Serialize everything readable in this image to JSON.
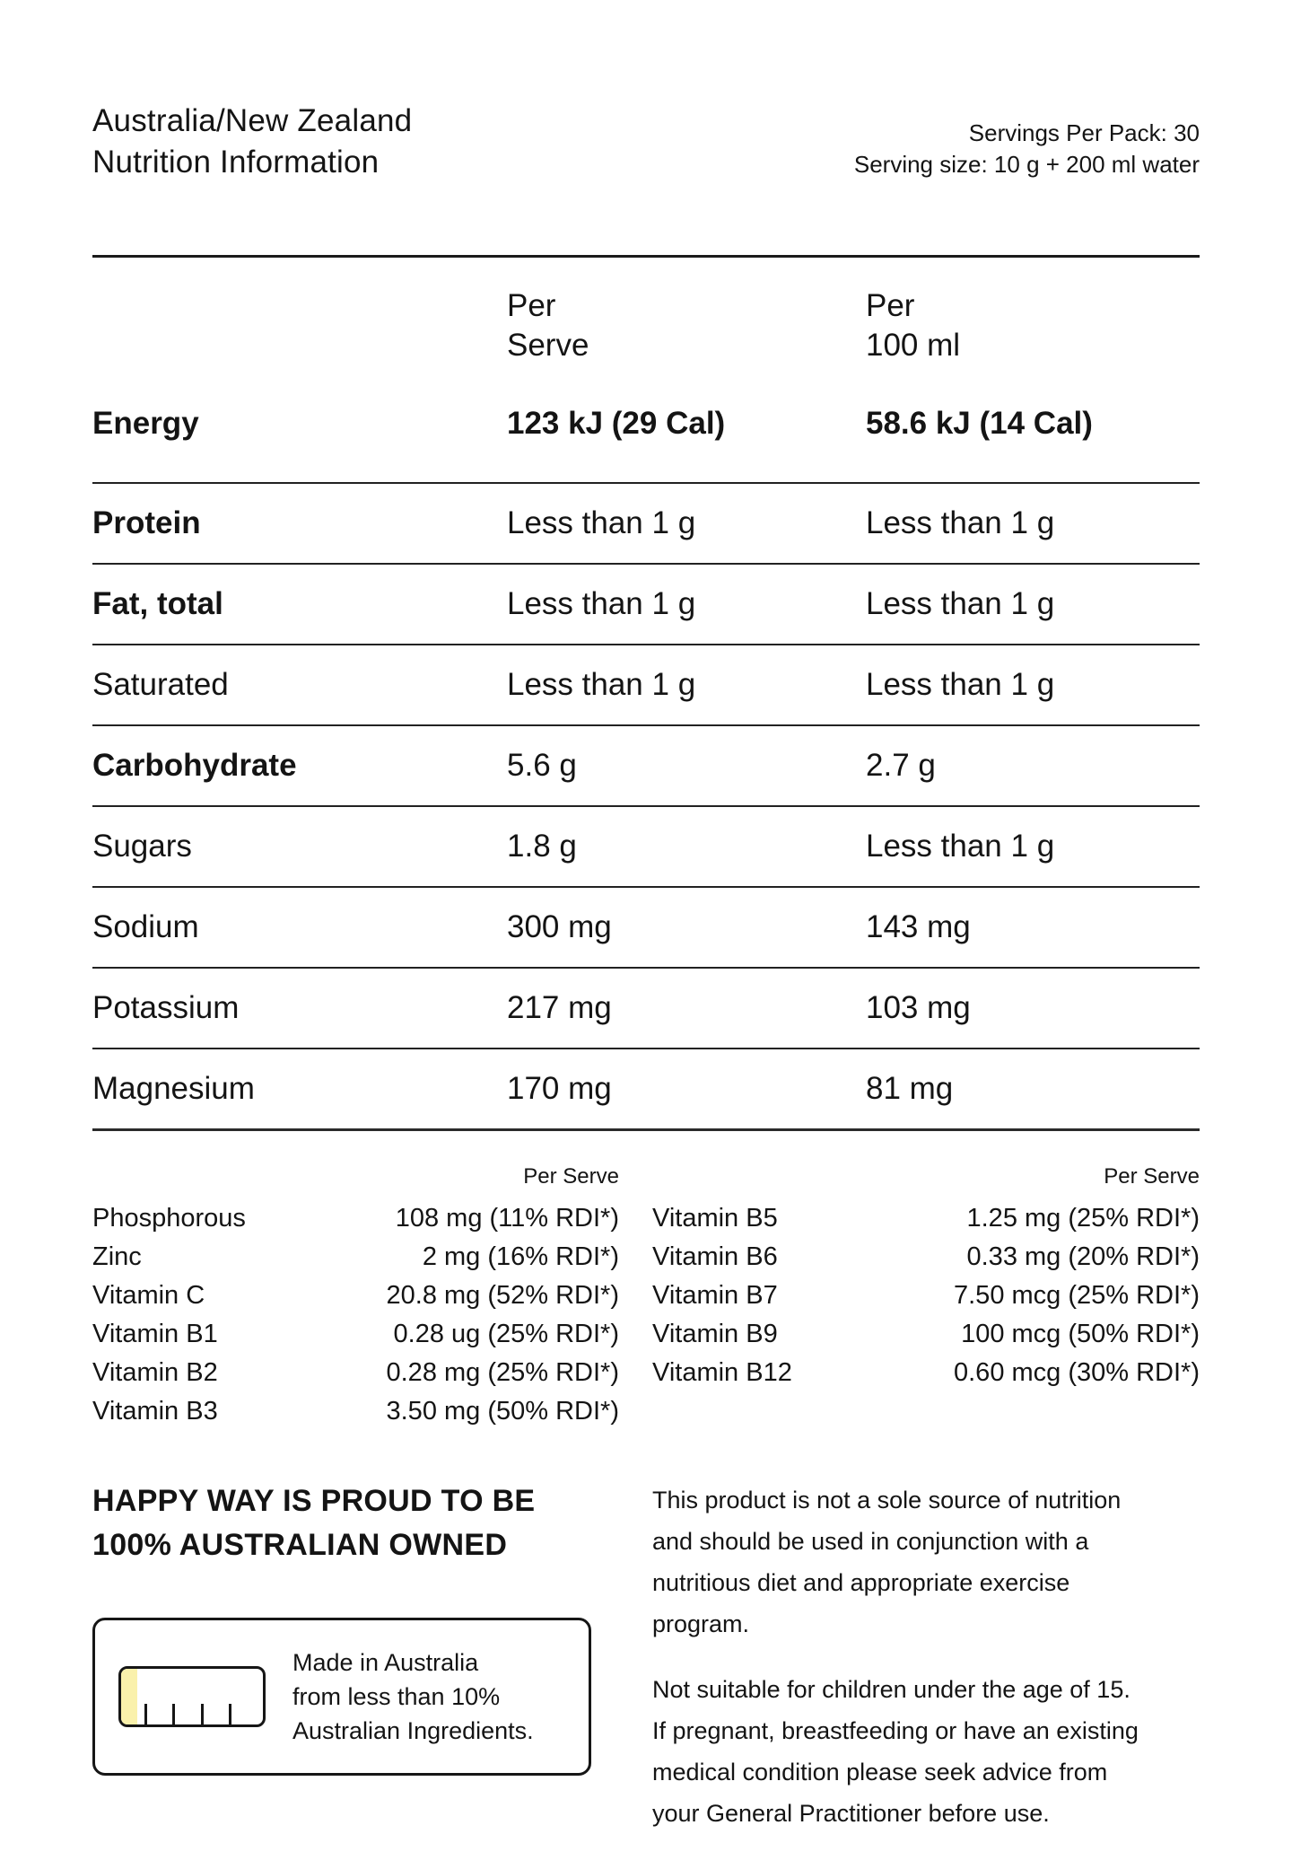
{
  "header": {
    "title_lines": [
      "Australia/New Zealand",
      "Nutrition Information"
    ],
    "servings_per_pack": "Servings Per Pack: 30",
    "serving_size": "Serving size: 10 g + 200 ml water"
  },
  "table": {
    "columns": {
      "per_serve": [
        "Per",
        "Serve"
      ],
      "per_100ml": [
        "Per",
        "100 ml"
      ]
    },
    "rows": [
      {
        "label": "Energy",
        "per_serve": "123 kJ (29 Cal)",
        "per_100ml": "58.6 kJ (14 Cal)"
      },
      {
        "label": "Protein",
        "per_serve": "Less than 1 g",
        "per_100ml": "Less than 1 g"
      },
      {
        "label": "Fat, total",
        "per_serve": "Less than 1 g",
        "per_100ml": "Less than 1 g"
      },
      {
        "label": "Saturated",
        "per_serve": "Less than 1 g",
        "per_100ml": "Less than 1 g"
      },
      {
        "label": "Carbohydrate",
        "per_serve": "5.6 g",
        "per_100ml": "2.7 g"
      },
      {
        "label": "Sugars",
        "per_serve": "1.8 g",
        "per_100ml": "Less than 1 g"
      },
      {
        "label": "Sodium",
        "per_serve": "300 mg",
        "per_100ml": "143 mg"
      },
      {
        "label": "Potassium",
        "per_serve": "217 mg",
        "per_100ml": "103 mg"
      },
      {
        "label": "Magnesium",
        "per_serve": "170 mg",
        "per_100ml": "81 mg"
      }
    ]
  },
  "micronutrients": {
    "left": {
      "header": "Per Serve",
      "items": [
        {
          "name": "Phosphorous",
          "value": "108 mg (11% RDI*)"
        },
        {
          "name": "Zinc",
          "value": "2 mg (16% RDI*)"
        },
        {
          "name": "Vitamin C",
          "value": "20.8 mg (52% RDI*)"
        },
        {
          "name": "Vitamin B1",
          "value": "0.28 ug (25% RDI*)"
        },
        {
          "name": "Vitamin B2",
          "value": "0.28 mg (25% RDI*)"
        },
        {
          "name": "Vitamin B3",
          "value": "3.50 mg (50% RDI*)"
        }
      ]
    },
    "right": {
      "header": "Per Serve",
      "items": [
        {
          "name": "Vitamin B5",
          "value": "1.25 mg (25% RDI*)"
        },
        {
          "name": "Vitamin B6",
          "value": "0.33 mg (20% RDI*)"
        },
        {
          "name": "Vitamin B7",
          "value": "7.50 mcg (25% RDI*)"
        },
        {
          "name": "Vitamin B9",
          "value": "100 mcg (50% RDI*)"
        },
        {
          "name": "Vitamin B12",
          "value": "0.60 mcg (30% RDI*)"
        }
      ]
    }
  },
  "footer": {
    "heading_lines": [
      "HAPPY WAY IS PROUD TO BE",
      "100% AUSTRALIAN OWNED"
    ],
    "made_in_badge": {
      "icon": "ingredient-gauge-icon",
      "lines": [
        "Made in Australia",
        "from less than 10%",
        "Australian Ingredients."
      ]
    },
    "disclaimers": [
      {
        "lines": [
          "This product is not a sole source of nutrition",
          "and should be used in conjunction with a",
          "nutritious diet and appropriate exercise",
          "program."
        ]
      },
      {
        "lines": [
          "Not suitable for children under the age of 15.",
          "If pregnant, breastfeeding or have an existing",
          "medical condition please seek advice from",
          "your General Practitioner before use."
        ]
      }
    ]
  },
  "colors": {
    "text": "#141414",
    "accent_yellow": "#faf1ab",
    "rule": "#1a1a1a"
  }
}
